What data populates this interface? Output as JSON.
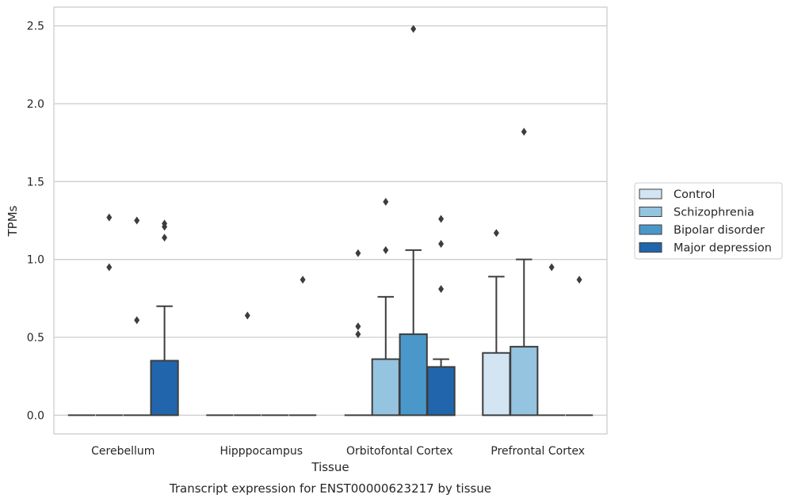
{
  "chart_data": {
    "type": "box",
    "caption": "Transcript expression for ENST00000623217 by tissue",
    "xlabel": "Tissue",
    "ylabel": "TPMs",
    "ylim": [
      -0.12,
      2.62
    ],
    "yticks": [
      0.0,
      0.5,
      1.0,
      1.5,
      2.0,
      2.5
    ],
    "ytick_labels": [
      "0.0",
      "0.5",
      "1.0",
      "1.5",
      "2.0",
      "2.5"
    ],
    "grid": "horizontal",
    "legend_position": "right",
    "categories": [
      "Cerebellum",
      "Hipppocampus",
      "Orbitofontal Cortex",
      "Prefrontal Cortex"
    ],
    "series": [
      {
        "name": "Control",
        "color": "#d3e4f3",
        "boxes": [
          {
            "q1": 0,
            "median": 0,
            "q3": 0,
            "whisker_high": 0,
            "outliers": []
          },
          {
            "q1": 0,
            "median": 0,
            "q3": 0,
            "whisker_high": 0,
            "outliers": []
          },
          {
            "q1": 0,
            "median": 0,
            "q3": 0,
            "whisker_high": 0,
            "outliers": []
          },
          {
            "q1": 0,
            "median": 0,
            "q3": 0.4,
            "whisker_high": 0.89,
            "outliers": [
              1.17
            ]
          }
        ]
      },
      {
        "name": "Schizophrenia",
        "color": "#94c4df",
        "boxes": [
          {
            "q1": 0,
            "median": 0,
            "q3": 0,
            "whisker_high": 0,
            "outliers": [
              0.95,
              1.27
            ]
          },
          {
            "q1": 0,
            "median": 0,
            "q3": 0,
            "whisker_high": 0,
            "outliers": [
              0.64
            ]
          },
          {
            "q1": 0,
            "median": 0,
            "q3": 0.36,
            "whisker_high": 0.76,
            "outliers": [
              1.06,
              1.37
            ]
          },
          {
            "q1": 0,
            "median": 0,
            "q3": 0.44,
            "whisker_high": 1.0,
            "outliers": [
              1.82
            ]
          }
        ]
      },
      {
        "name": "Bipolar disorder",
        "color": "#4a98c9",
        "boxes": [
          {
            "q1": 0,
            "median": 0,
            "q3": 0,
            "whisker_high": 0,
            "outliers": [
              0.61,
              1.25
            ]
          },
          {
            "q1": 0,
            "median": 0,
            "q3": 0,
            "whisker_high": 0,
            "outliers": []
          },
          {
            "q1": 0,
            "median": 0,
            "q3": 0.52,
            "whisker_high": 1.06,
            "outliers": [
              2.48
            ]
          },
          {
            "q1": 0,
            "median": 0,
            "q3": 0,
            "whisker_high": 0,
            "outliers": [
              0.95
            ]
          }
        ]
      },
      {
        "name": "Major depression",
        "color": "#2166ac",
        "boxes": [
          {
            "q1": 0,
            "median": 0,
            "q3": 0.35,
            "whisker_high": 0.7,
            "outliers": [
              1.14,
              1.21,
              1.23
            ]
          },
          {
            "q1": 0,
            "median": 0,
            "q3": 0,
            "whisker_high": 0,
            "outliers": [
              0.87
            ]
          },
          {
            "q1": 0,
            "median": 0,
            "q3": 0.31,
            "whisker_high": 0.36,
            "outliers": [
              0.81,
              1.1,
              1.26
            ]
          },
          {
            "q1": 0,
            "median": 0,
            "q3": 0,
            "whisker_high": 0,
            "outliers": [
              0.87
            ]
          }
        ]
      }
    ],
    "extra_points": [
      {
        "category": "Orbitofontal Cortex",
        "series": "Schizophrenia",
        "values": [
          0.52,
          0.57,
          1.04
        ],
        "offset_series": "Control"
      }
    ]
  }
}
